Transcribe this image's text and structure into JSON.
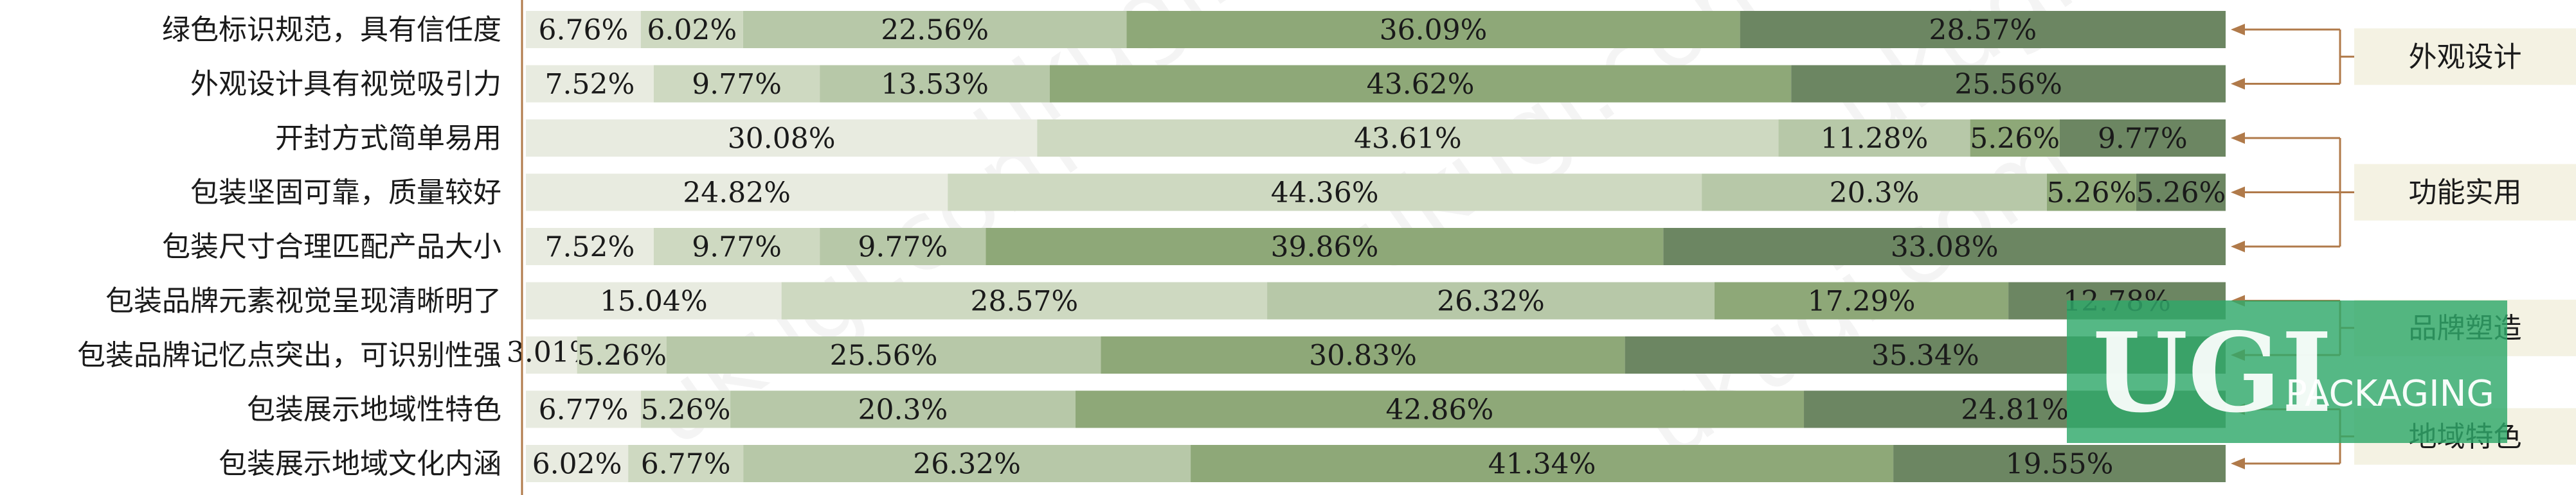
{
  "chart_data": {
    "type": "bar",
    "orientation": "horizontal",
    "stacked": "percent",
    "categories": [
      "绿色标识规范，具有信任度",
      "外观设计具有视觉吸引力",
      "开封方式简单易用",
      "包装坚固可靠，质量较好",
      "包装尺寸合理匹配产品大小",
      "包装品牌元素视觉呈现清晰明了",
      "包装品牌记忆点突出，可识别性强",
      "包装展示地域性特色",
      "包装展示地域文化内涵"
    ],
    "series": [
      {
        "values": [
          6.76,
          7.52,
          30.08,
          24.82,
          7.52,
          15.04,
          3.01,
          6.77,
          6.02
        ],
        "labels": [
          "6.76%",
          "7.52%",
          "30.08%",
          "24.82%",
          "7.52%",
          "15.04%",
          "3.01%",
          "6.77%",
          "6.02%"
        ]
      },
      {
        "values": [
          6.02,
          9.77,
          43.61,
          44.36,
          9.77,
          28.57,
          5.26,
          5.26,
          6.77
        ],
        "labels": [
          "6.02%",
          "9.77%",
          "43.61%",
          "44.36%",
          "9.77%",
          "28.57%",
          "5.26%",
          "5.26%",
          "6.77%"
        ]
      },
      {
        "values": [
          22.56,
          13.53,
          11.28,
          20.3,
          9.77,
          26.32,
          25.56,
          20.3,
          26.32
        ],
        "labels": [
          "22.56%",
          "13.53%",
          "11.28%",
          "20.3%",
          "9.77%",
          "26.32%",
          "25.56%",
          "20.3%",
          "26.32%"
        ]
      },
      {
        "values": [
          36.09,
          43.62,
          5.26,
          5.26,
          39.86,
          17.29,
          30.83,
          42.86,
          41.34
        ],
        "labels": [
          "36.09%",
          "43.62%",
          "5.26%",
          "5.26%",
          "39.86%",
          "17.29%",
          "30.83%",
          "42.86%",
          "41.34%"
        ]
      },
      {
        "values": [
          28.57,
          25.56,
          9.77,
          5.26,
          33.08,
          12.78,
          35.34,
          24.81,
          19.55
        ],
        "labels": [
          "28.57%",
          "25.56%",
          "9.77%",
          "5.26%",
          "33.08%",
          "12.78%",
          "35.34%",
          "24.81%",
          "19.55%"
        ]
      }
    ],
    "series_colors": [
      "#e8ebe0",
      "#ced9c1",
      "#b7c8a8",
      "#8ea878",
      "#6c8662"
    ],
    "xlim": [
      0,
      100
    ],
    "groups": [
      {
        "label": "外观设计",
        "rows": [
          0,
          1
        ]
      },
      {
        "label": "功能实用",
        "rows": [
          2,
          3,
          4
        ]
      },
      {
        "label": "品牌塑造",
        "rows": [
          5,
          6
        ]
      },
      {
        "label": "地域特色",
        "rows": [
          7,
          8
        ]
      }
    ],
    "bracket_color": "#b07a4a",
    "group_box_color": "#f4f2e3"
  },
  "watermark": {
    "logo_text": "UGI",
    "logo_subtext": "PACKAGING",
    "logo_color": "#2fa86a",
    "repeated_text": "ukugi.com"
  }
}
